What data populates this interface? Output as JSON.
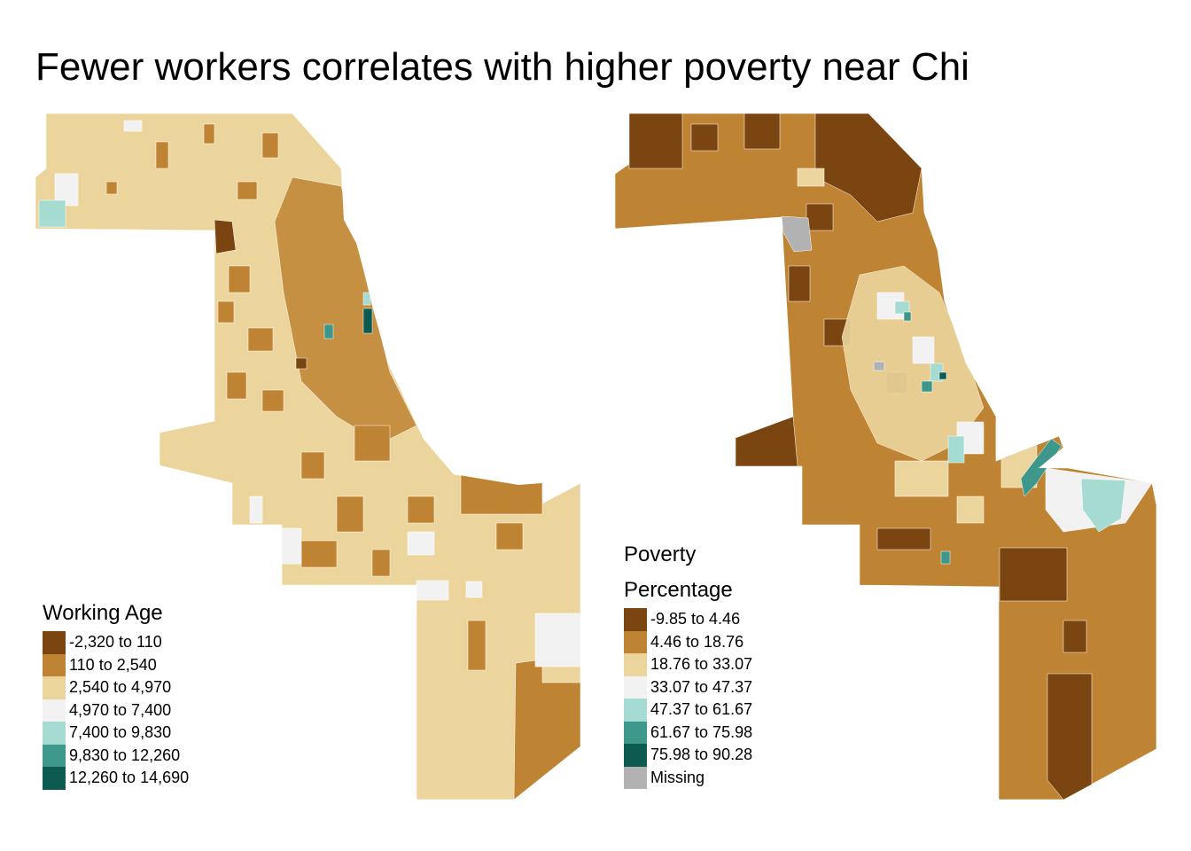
{
  "title": "Fewer workers correlates with higher poverty near Chi",
  "colors": {
    "c1": "#7a4510",
    "c2": "#bf8433",
    "c3": "#ecd59d",
    "c4": "#f2f2f2",
    "c5": "#a5dbd1",
    "c6": "#3d978a",
    "c7": "#0c5a50",
    "missing": "#b2b2b2"
  },
  "maps": [
    {
      "legend_title_lines": [
        "Working Age"
      ],
      "legend": [
        {
          "label": "-2,320 to 110",
          "color": "#7a4510"
        },
        {
          "label": "110 to 2,540",
          "color": "#bf8433"
        },
        {
          "label": "2,540 to 4,970",
          "color": "#ecd59d"
        },
        {
          "label": "4,970 to 7,400",
          "color": "#f2f2f2"
        },
        {
          "label": "7,400 to 9,830",
          "color": "#a5dbd1"
        },
        {
          "label": "9,830 to 12,260",
          "color": "#3d978a"
        },
        {
          "label": "12,260 to 14,690",
          "color": "#0c5a50"
        }
      ]
    },
    {
      "legend_title_lines": [
        "Poverty",
        "Percentage"
      ],
      "legend": [
        {
          "label": "-9.85 to 4.46",
          "color": "#7a4510"
        },
        {
          "label": "4.46 to 18.76",
          "color": "#bf8433"
        },
        {
          "label": "18.76 to 33.07",
          "color": "#ecd59d"
        },
        {
          "label": "33.07 to 47.37",
          "color": "#f2f2f2"
        },
        {
          "label": "47.37 to 61.67",
          "color": "#a5dbd1"
        },
        {
          "label": "61.67 to 75.98",
          "color": "#3d978a"
        },
        {
          "label": "75.98 to 90.28",
          "color": "#0c5a50"
        },
        {
          "label": "Missing",
          "color": "#b2b2b2"
        }
      ]
    }
  ]
}
